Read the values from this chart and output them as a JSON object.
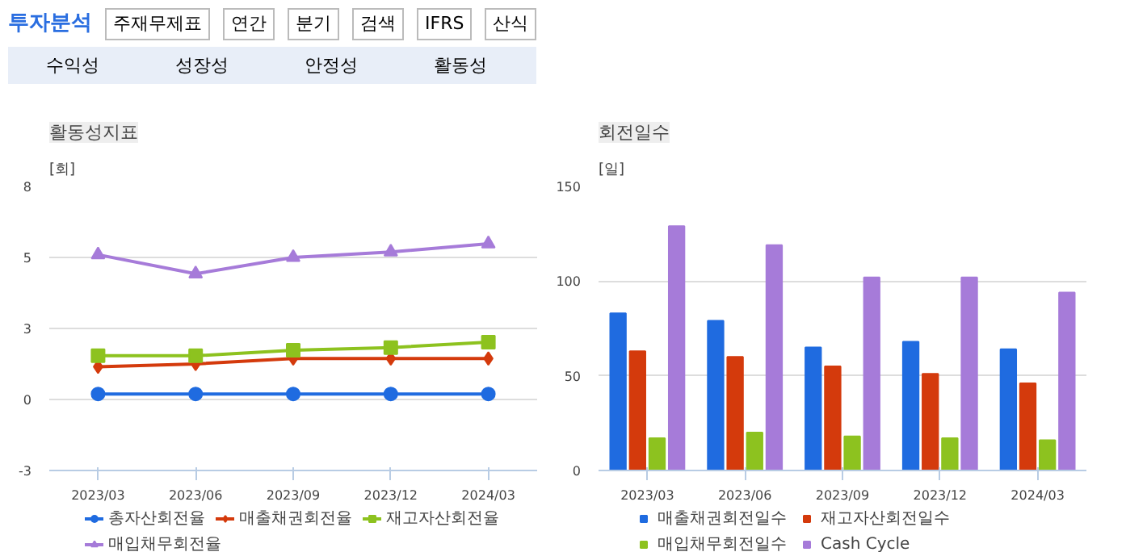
{
  "chart_data": [
    {
      "type": "line",
      "title": "활동성지표",
      "ylabel": "[회]",
      "annotations": [
        "투자분석",
        "주재무제표",
        "연간",
        "분기",
        "검색",
        "IFRS",
        "산식",
        "수익성",
        "성장성",
        "안정성",
        "활동성"
      ],
      "categories": [
        "2023/03",
        "2023/06",
        "2023/09",
        "2023/12",
        "2024/03"
      ],
      "ylim": [
        -2.6,
        7.8
      ],
      "yticks": [
        {
          "value": -2.6,
          "label": "-3"
        },
        {
          "value": 0,
          "label": "0"
        },
        {
          "value": 2.6,
          "label": "3"
        },
        {
          "value": 5.2,
          "label": "5"
        },
        {
          "value": 7.8,
          "label": "8"
        }
      ],
      "grid": "y",
      "legend": "bottom",
      "line_style": "solid",
      "series": [
        {
          "name": "총자산회전율",
          "color": "#1f6be0",
          "marker": "circle",
          "values": [
            0.2,
            0.2,
            0.2,
            0.2,
            0.2
          ]
        },
        {
          "name": "매출채권회전율",
          "color": "#d43a0c",
          "marker": "diamond",
          "values": [
            1.2,
            1.3,
            1.5,
            1.5,
            1.5
          ]
        },
        {
          "name": "재고자산회전율",
          "color": "#8dc21f",
          "marker": "square",
          "values": [
            1.6,
            1.6,
            1.8,
            1.9,
            2.1
          ]
        },
        {
          "name": "매입채무회전율",
          "color": "#a67bd9",
          "marker": "triangle",
          "values": [
            5.3,
            4.6,
            5.2,
            5.4,
            5.7
          ]
        }
      ]
    },
    {
      "type": "bar",
      "title": "회전일수",
      "ylabel": "[일]",
      "categories": [
        "2023/03",
        "2023/06",
        "2023/09",
        "2023/12",
        "2024/03"
      ],
      "ylim": [
        0,
        150
      ],
      "yticks": [
        0,
        50,
        100,
        150
      ],
      "grid": "y",
      "legend": "bottom",
      "series": [
        {
          "name": "매출채권회전일수",
          "color": "#1f6be0",
          "values": [
            83,
            79,
            65,
            68,
            64
          ]
        },
        {
          "name": "재고자산회전일수",
          "color": "#d43a0c",
          "values": [
            63,
            60,
            55,
            51,
            46
          ]
        },
        {
          "name": "매입채무회전일수",
          "color": "#8dc21f",
          "values": [
            17,
            20,
            18,
            17,
            16
          ]
        },
        {
          "name": "Cash Cycle",
          "color": "#a67bd9",
          "values": [
            129,
            119,
            102,
            102,
            94
          ]
        }
      ]
    }
  ]
}
